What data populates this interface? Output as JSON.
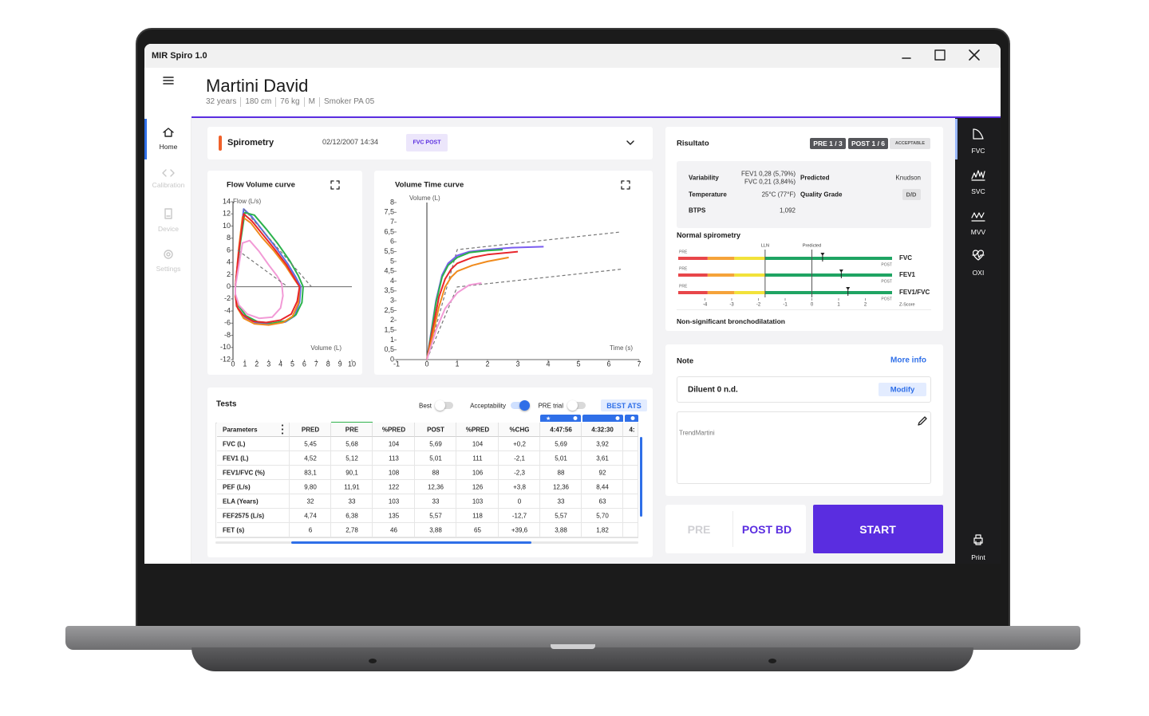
{
  "app": {
    "title": "MIR Spiro 1.0"
  },
  "patient": {
    "name": "Martini David",
    "details": [
      "32 years",
      "180 cm",
      "76 kg",
      "M",
      "Smoker PA 05"
    ]
  },
  "left_nav": [
    {
      "label": "Home",
      "active": true
    },
    {
      "label": "Calibration",
      "active": false
    },
    {
      "label": "Device",
      "active": false
    },
    {
      "label": "Settings",
      "active": false
    }
  ],
  "right_nav": {
    "items": [
      "FVC",
      "SVC",
      "MVV",
      "OXI"
    ],
    "print": "Print"
  },
  "spirometry": {
    "title": "Spirometry",
    "date": "02/12/2007 14:34",
    "badge": "FVC POST"
  },
  "chart_data": [
    {
      "type": "line",
      "title": "Flow Volume curve",
      "x_label": "Volume (L)",
      "y_label": "Flow (L/s)",
      "xlim": [
        0,
        10
      ],
      "ylim": [
        -12,
        14
      ],
      "xticks": [
        0,
        1,
        2,
        3,
        4,
        5,
        6,
        7,
        8,
        9,
        10
      ],
      "yticks": [
        14,
        12,
        10,
        8,
        6,
        4,
        2,
        0,
        -2,
        -4,
        -6,
        -8,
        -10,
        -12
      ],
      "series": [
        {
          "color": "#5b6ee8",
          "x": [
            0.2,
            0.5,
            0.9,
            1.6,
            2.6,
            3.6,
            4.6,
            5.3,
            5.7,
            5.6,
            5.2,
            4.4,
            3.2,
            2.0,
            1.0,
            0.4,
            0.2,
            0.2
          ],
          "values": [
            0,
            6,
            12.8,
            11.5,
            9,
            6.5,
            3.8,
            1.5,
            0,
            -2.5,
            -4.8,
            -5.8,
            -6.2,
            -6,
            -5,
            -3.5,
            -1.5,
            0
          ]
        },
        {
          "color": "#2bb24c",
          "x": [
            0.2,
            0.6,
            1.0,
            1.8,
            2.8,
            3.8,
            4.8,
            5.5,
            5.9,
            5.8,
            5.3,
            4.5,
            3.3,
            2.1,
            1.1,
            0.5,
            0.2,
            0.2
          ],
          "values": [
            0,
            7,
            12.2,
            11.8,
            9.5,
            7,
            4.2,
            1.8,
            0,
            -2.6,
            -4.6,
            -5.6,
            -6,
            -5.8,
            -4.8,
            -3.2,
            -1.4,
            0
          ]
        },
        {
          "color": "#f08a1c",
          "x": [
            0.2,
            0.5,
            0.8,
            1.5,
            2.4,
            3.4,
            4.4,
            5.1,
            5.6,
            5.5,
            5.0,
            4.2,
            3.0,
            1.8,
            0.9,
            0.4,
            0.2,
            0.2
          ],
          "values": [
            0,
            6.5,
            11.5,
            10.5,
            8.2,
            6,
            3.5,
            1.4,
            0,
            -2.7,
            -4.9,
            -5.9,
            -6.3,
            -6.1,
            -5.2,
            -3.6,
            -1.6,
            0
          ]
        },
        {
          "color": "#e8262c",
          "x": [
            0.2,
            0.5,
            0.9,
            1.6,
            2.5,
            3.5,
            4.5,
            5.2,
            5.6,
            5.4,
            4.9,
            4.0,
            2.8,
            1.7,
            0.8,
            0.3,
            0.2,
            0.2
          ],
          "values": [
            0,
            6,
            12,
            10.8,
            8.6,
            6.2,
            3.6,
            1.3,
            0,
            -2.4,
            -4.5,
            -5.5,
            -5.9,
            -5.7,
            -4.6,
            -3.2,
            -1.3,
            0
          ]
        },
        {
          "color": "#f29ad6",
          "x": [
            0.2,
            0.8,
            1.4,
            2.2,
            3.0,
            3.7,
            4.1,
            4.2,
            4.0,
            3.3,
            2.2,
            1.2,
            0.5,
            0.2,
            0.2
          ],
          "values": [
            0,
            7.2,
            7.6,
            5.8,
            3.6,
            1.8,
            0.5,
            -1.5,
            -3.5,
            -5,
            -5.2,
            -4.5,
            -3,
            -1.2,
            0
          ]
        },
        {
          "color": "#777777",
          "dashed": true,
          "x": [
            0.9,
            6.6
          ],
          "values": [
            12.8,
            0
          ]
        },
        {
          "color": "#777777",
          "dashed": true,
          "x": [
            0.4,
            4.6
          ],
          "values": [
            6,
            0
          ]
        }
      ]
    },
    {
      "type": "line",
      "title": "Volume Time curve",
      "x_label": "Time (s)",
      "y_label": "Volume (L)",
      "xlim": [
        -1,
        7
      ],
      "ylim": [
        0,
        8
      ],
      "xticks": [
        -1,
        0,
        1,
        2,
        3,
        4,
        5,
        6,
        7
      ],
      "yticks": [
        0,
        {
          "value": 0.5,
          "label": "0,5"
        },
        1,
        {
          "value": 1.5,
          "label": "1,5"
        },
        2,
        {
          "value": 2.5,
          "label": "2,5"
        },
        3,
        {
          "value": 3.5,
          "label": "3,5"
        },
        4,
        {
          "value": 4.5,
          "label": "4,5"
        },
        5,
        {
          "value": 5.5,
          "label": "5,5"
        },
        6,
        {
          "value": 6.5,
          "label": "6,5"
        },
        7,
        {
          "value": 7.5,
          "label": "7,5"
        },
        8
      ],
      "series": [
        {
          "color": "#777777",
          "dashed": true,
          "x": [
            0,
            1,
            6.4
          ],
          "values": [
            0,
            5.6,
            6.5
          ]
        },
        {
          "color": "#777777",
          "dashed": true,
          "x": [
            0,
            1,
            6.4
          ],
          "values": [
            0,
            3.7,
            4.6
          ]
        },
        {
          "color": "#7a5cf0",
          "x": [
            0,
            0.15,
            0.3,
            0.5,
            0.7,
            1,
            1.4,
            2,
            2.8,
            3.85
          ],
          "values": [
            0,
            1.5,
            3,
            4.3,
            4.9,
            5.3,
            5.5,
            5.6,
            5.7,
            5.75
          ]
        },
        {
          "color": "#2bb24c",
          "x": [
            0,
            0.15,
            0.3,
            0.5,
            0.7,
            1,
            1.4,
            2,
            2.5
          ],
          "values": [
            0,
            1.4,
            2.9,
            4.2,
            4.8,
            5.2,
            5.45,
            5.55,
            5.6
          ]
        },
        {
          "color": "#e8262c",
          "x": [
            0,
            0.2,
            0.4,
            0.6,
            0.8,
            1,
            1.5,
            2,
            3
          ],
          "values": [
            0,
            1.6,
            3.2,
            4.1,
            4.6,
            4.9,
            5.2,
            5.35,
            5.5
          ]
        },
        {
          "color": "#f08a1c",
          "x": [
            0,
            0.2,
            0.4,
            0.6,
            0.8,
            1,
            1.5,
            2,
            2.7
          ],
          "values": [
            0,
            1.3,
            2.7,
            3.7,
            4.2,
            4.5,
            4.8,
            5.0,
            5.2
          ]
        },
        {
          "color": "#f29ad6",
          "x": [
            0,
            0.3,
            0.6,
            1,
            1.4,
            1.8
          ],
          "values": [
            0,
            1.5,
            2.6,
            3.4,
            3.8,
            3.9
          ]
        }
      ]
    }
  ],
  "tests": {
    "title": "Tests",
    "toggles": [
      {
        "label": "Best",
        "on": false
      },
      {
        "label": "Acceptability",
        "on": true
      },
      {
        "label": "PRE trial",
        "on": false
      }
    ],
    "button": "BEST ATS",
    "columns": [
      "Parameters",
      "PRED",
      "PRE",
      "%PRED",
      "POST",
      "%PRED",
      "%CHG",
      "4:47:56",
      "4:32:30",
      "4:"
    ],
    "rows": [
      [
        "FVC (L)",
        "5,45",
        "5,68",
        "104",
        "5,69",
        "104",
        "+0,2",
        "5,69",
        "3,92"
      ],
      [
        "FEV1 (L)",
        "4,52",
        "5,12",
        "113",
        "5,01",
        "111",
        "-2,1",
        "5,01",
        "3,61"
      ],
      [
        "FEV1/FVC (%)",
        "83,1",
        "90,1",
        "108",
        "88",
        "106",
        "-2,3",
        "88",
        "92"
      ],
      [
        "PEF (L/s)",
        "9,80",
        "11,91",
        "122",
        "12,36",
        "126",
        "+3,8",
        "12,36",
        "8,44"
      ],
      [
        "ELA (Years)",
        "32",
        "33",
        "103",
        "33",
        "103",
        "0",
        "33",
        "63"
      ],
      [
        "FEF2575 (L/s)",
        "4,74",
        "6,38",
        "135",
        "5,57",
        "118",
        "-12,7",
        "5,57",
        "5,70"
      ],
      [
        "FET (s)",
        "6",
        "2,78",
        "46",
        "3,88",
        "65",
        "+39,6",
        "3,88",
        "1,82"
      ]
    ]
  },
  "risultato": {
    "title": "Risultato",
    "badges": [
      "PRE 1 / 3",
      "POST 1 / 6",
      "ACCEPTABLE"
    ],
    "info": {
      "variability_label": "Variability",
      "variability": [
        "FEV1 0,28 (5,79%)",
        "FVC 0,21 (3,84%)"
      ],
      "temperature_label": "Temperature",
      "temperature": "25°C (77°F)",
      "btps_label": "BTPS",
      "btps": "1,092",
      "predicted_label": "Predicted",
      "predicted": "Knudson",
      "quality_label": "Quality Grade",
      "quality": "D/D"
    },
    "normal_spirometry": {
      "title": "Normal spirometry",
      "lln_label": "LLN",
      "predicted_label": "Predicted",
      "lln": -1.75,
      "predicted": 0,
      "xlim": [
        -5,
        3
      ],
      "xticks": [
        -4,
        -3,
        -2,
        -1,
        0,
        1,
        2
      ],
      "x_label": "Z-Score",
      "pre_label": "PRE",
      "post_label": "POST",
      "bands": [
        {
          "to": -3.9,
          "color": "#e8464a"
        },
        {
          "to": -2.9,
          "color": "#f5a33a"
        },
        {
          "to": -1.75,
          "color": "#f2e23a"
        },
        {
          "to": 3,
          "color": "#1fa463"
        }
      ],
      "rows": [
        {
          "name": "FVC",
          "value": 0.4
        },
        {
          "name": "FEV1",
          "value": 1.1
        },
        {
          "name": "FEV1/FVC",
          "value": 1.35
        }
      ]
    },
    "conclusion": "Non-significant bronchodilatation"
  },
  "note": {
    "title": "Note",
    "more": "More info",
    "diluent": "Diluent 0 n.d.",
    "modify": "Modify",
    "text": "TrendMartini"
  },
  "actions": {
    "pre": "PRE",
    "post": "POST BD",
    "start": "START"
  }
}
